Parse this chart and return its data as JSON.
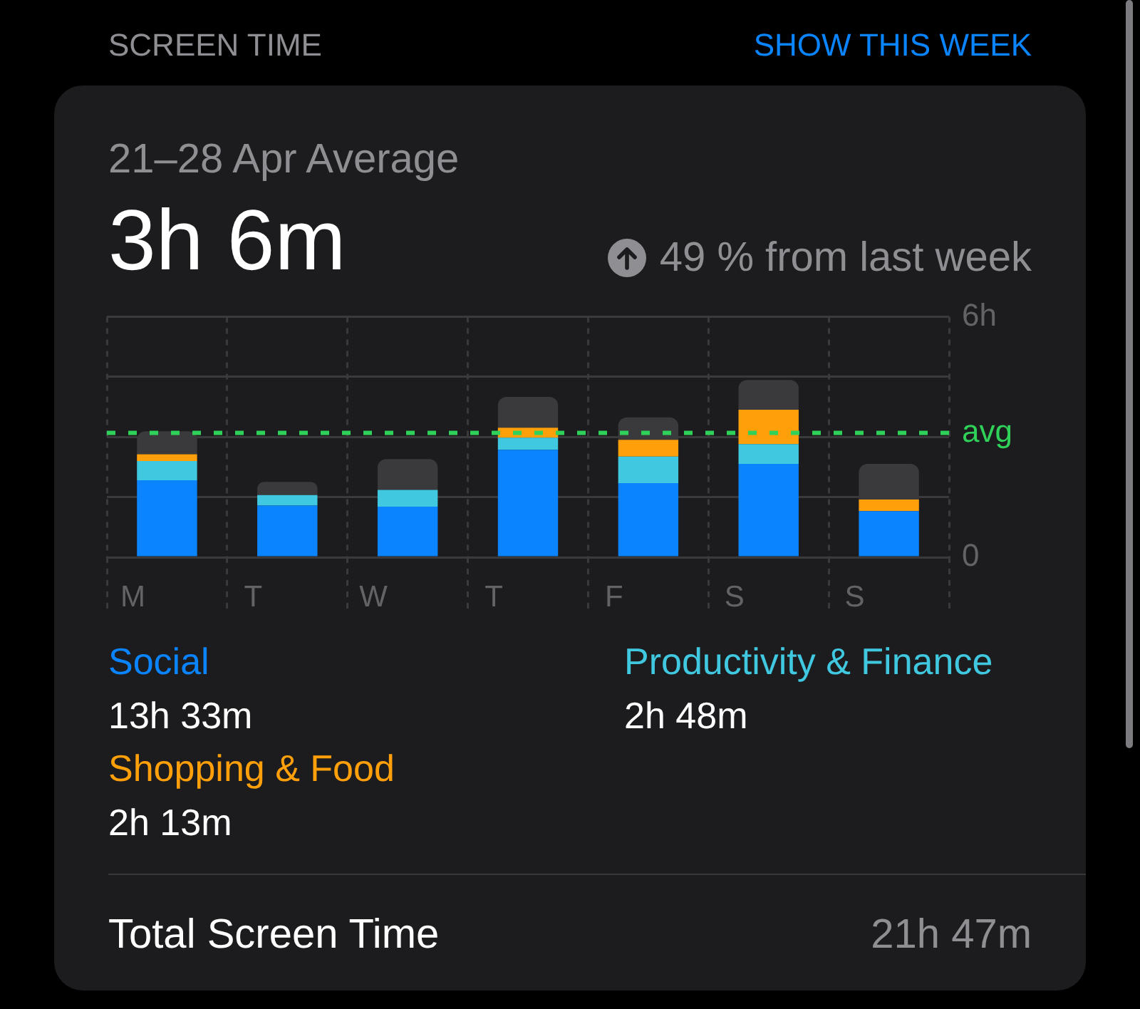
{
  "chart_data": {
    "type": "bar",
    "title": "SCREEN TIME",
    "subtitle": "21–28 Apr Average",
    "categories": [
      "M",
      "T",
      "W",
      "T",
      "F",
      "S",
      "S"
    ],
    "series": [
      {
        "name": "Social",
        "color": "#0a84ff",
        "values": [
          1.92,
          1.29,
          1.26,
          2.68,
          1.85,
          2.33,
          1.15
        ]
      },
      {
        "name": "Productivity & Finance",
        "color": "#40c8e0",
        "values": [
          0.48,
          0.26,
          0.42,
          0.3,
          0.66,
          0.49,
          0
        ]
      },
      {
        "name": "Shopping & Food",
        "color": "#ff9f0a",
        "values": [
          0.17,
          0,
          0,
          0.25,
          0.42,
          0.86,
          0.29
        ]
      },
      {
        "color": "#3a3a3c",
        "values": [
          0.57,
          0.33,
          0.77,
          0.77,
          0.56,
          0.74,
          0.89
        ]
      }
    ],
    "stacked": true,
    "ylim": [
      0,
      6
    ],
    "yticks": [
      0,
      {
        "value": 1.5,
        "label": null
      },
      {
        "value": 3,
        "label": null
      },
      {
        "value": 4.5,
        "label": null
      },
      {
        "value": 6,
        "label": "6h"
      }
    ],
    "grid": true,
    "legend": "bottom",
    "ref_lines": [
      {
        "axis": "y",
        "value": 3.1,
        "label": "avg",
        "color": "#30d158",
        "line_style": "dashed"
      }
    ],
    "annotations": [
      "SHOW THIS WEEK",
      "3h 6m",
      "49 % from last week",
      "13h 33m",
      "2h 48m",
      "2h 13m",
      "Total Screen Time",
      "21h 47m"
    ]
  }
}
